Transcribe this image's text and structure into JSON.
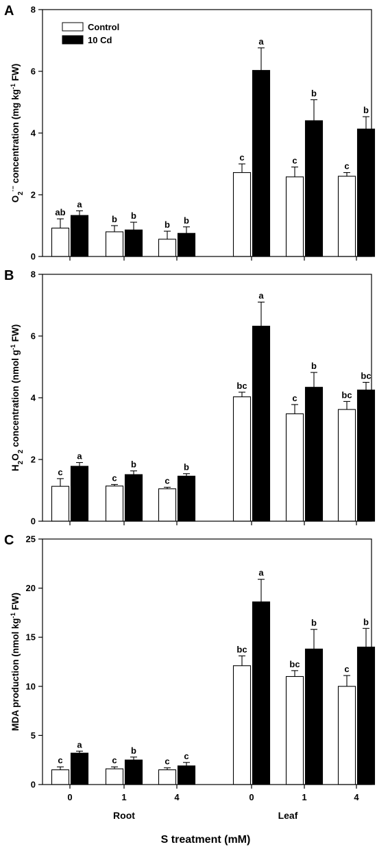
{
  "chart_data": [
    {
      "type": "bar",
      "panel": "A",
      "ylabel_parts": [
        "O",
        "2",
        "·−",
        " concentration (mg kg",
        "-1",
        " FW)"
      ],
      "ylim": [
        0,
        8
      ],
      "yticks": [
        "0",
        "2",
        "4",
        "6",
        "8"
      ],
      "categories": [
        "0",
        "1",
        "4",
        "0",
        "1",
        "4"
      ],
      "series": [
        {
          "name": "Control",
          "color": "#ffffff",
          "values": [
            0.92,
            0.8,
            0.56,
            2.72,
            2.58,
            2.6
          ],
          "errors": [
            0.3,
            0.2,
            0.26,
            0.28,
            0.32,
            0.12
          ],
          "labels": [
            "ab",
            "b",
            "b",
            "c",
            "c",
            "c"
          ]
        },
        {
          "name": "10 Cd",
          "color": "#000000",
          "values": [
            1.33,
            0.86,
            0.75,
            6.03,
            4.4,
            4.13
          ],
          "errors": [
            0.15,
            0.25,
            0.21,
            0.73,
            0.68,
            0.4
          ],
          "labels": [
            "a",
            "b",
            "b",
            "a",
            "b",
            "b"
          ]
        }
      ]
    },
    {
      "type": "bar",
      "panel": "B",
      "ylabel_parts": [
        "H",
        "2",
        "",
        "O",
        "2",
        " concentration (nmol g",
        "-1",
        " FW)"
      ],
      "ylim": [
        0,
        8
      ],
      "yticks": [
        "0",
        "2",
        "4",
        "6",
        "8"
      ],
      "categories": [
        "0",
        "1",
        "4",
        "0",
        "1",
        "4"
      ],
      "series": [
        {
          "name": "Control",
          "color": "#ffffff",
          "values": [
            1.13,
            1.14,
            1.05,
            4.03,
            3.48,
            3.62
          ],
          "errors": [
            0.25,
            0.05,
            0.05,
            0.15,
            0.3,
            0.26
          ],
          "labels": [
            "c",
            "c",
            "c",
            "bc",
            "c",
            "bc"
          ]
        },
        {
          "name": "10 Cd",
          "color": "#000000",
          "values": [
            1.78,
            1.51,
            1.46,
            6.32,
            4.34,
            4.25
          ],
          "errors": [
            0.12,
            0.12,
            0.08,
            0.78,
            0.48,
            0.25
          ],
          "labels": [
            "a",
            "b",
            "b",
            "a",
            "b",
            "bc"
          ]
        }
      ]
    },
    {
      "type": "bar",
      "panel": "C",
      "ylabel": "MDA production (nmol kg-1 FW)",
      "ylabel_parts": [
        "MDA production (nmol kg",
        "-1",
        " FW)"
      ],
      "ylim": [
        0,
        25
      ],
      "yticks": [
        "0",
        "5",
        "10",
        "15",
        "20",
        "25"
      ],
      "categories": [
        "0",
        "1",
        "4",
        "0",
        "1",
        "4"
      ],
      "groups": [
        "Root",
        "Leaf"
      ],
      "xlabel": "S treatment (mM)",
      "series": [
        {
          "name": "Control",
          "color": "#ffffff",
          "values": [
            1.5,
            1.6,
            1.5,
            12.1,
            11.0,
            10.0
          ],
          "errors": [
            0.3,
            0.2,
            0.2,
            1.0,
            0.6,
            1.1
          ],
          "labels": [
            "c",
            "c",
            "c",
            "bc",
            "bc",
            "c"
          ]
        },
        {
          "name": "10 Cd",
          "color": "#000000",
          "values": [
            3.2,
            2.5,
            1.9,
            18.6,
            13.8,
            14.0
          ],
          "errors": [
            0.2,
            0.3,
            0.35,
            2.3,
            2.0,
            1.9
          ],
          "labels": [
            "a",
            "b",
            "c",
            "a",
            "b",
            "b"
          ]
        }
      ]
    }
  ],
  "legend": {
    "control_label": "Control",
    "cd_label": "10 Cd"
  },
  "groups": {
    "root": "Root",
    "leaf": "Leaf"
  },
  "x_title": "S treatment (mM)"
}
